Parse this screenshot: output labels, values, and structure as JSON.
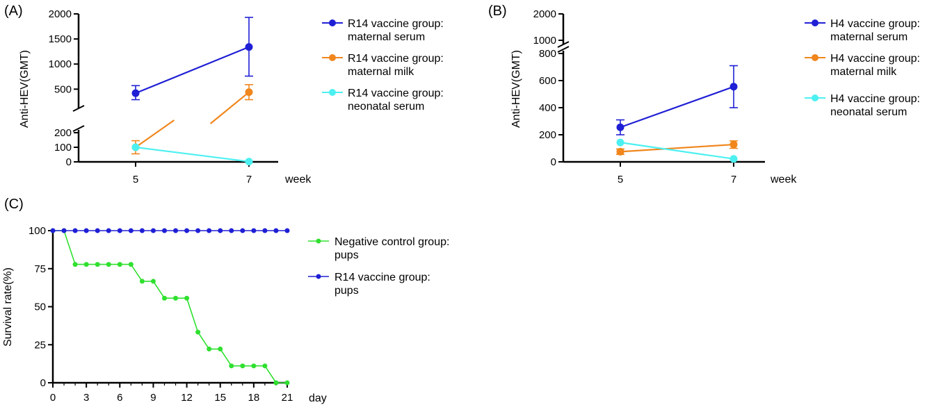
{
  "colors": {
    "blue": "#1f1fd6",
    "orange": "#f0861c",
    "cyan": "#4df0f0",
    "green": "#2fe02f",
    "axis": "#000000"
  },
  "chart_data": [
    {
      "panel_label": "(A)",
      "type": "line",
      "ylabel": "Anti-HEV(GMT)",
      "xlabel": "week",
      "x": [
        5,
        7
      ],
      "x_ticks": [
        "5",
        "7"
      ],
      "y_axis_broken": true,
      "y_lower_segment": {
        "range": [
          0,
          200
        ],
        "ticks": [
          "0",
          "100",
          "200"
        ]
      },
      "y_upper_segment": {
        "range": [
          200,
          2000
        ],
        "ticks": [
          "500",
          "1000",
          "1500",
          "2000"
        ]
      },
      "legend_position": "right",
      "series": [
        {
          "name_line1": "R14 vaccine group:",
          "name_line2": "maternal serum",
          "color": "blue",
          "values": [
            420,
            1340
          ],
          "err_low": [
            290,
            760
          ],
          "err_high": [
            570,
            1930
          ]
        },
        {
          "name_line1": "R14 vaccine group:",
          "name_line2": "maternal milk",
          "color": "orange",
          "values": [
            100,
            440
          ],
          "err_low": [
            55,
            290
          ],
          "err_high": [
            145,
            590
          ]
        },
        {
          "name_line1": "R14 vaccine group:",
          "name_line2": "neonatal serum",
          "color": "cyan",
          "values": [
            100,
            2
          ],
          "err_low": [
            100,
            2
          ],
          "err_high": [
            100,
            2
          ]
        }
      ]
    },
    {
      "panel_label": "(B)",
      "type": "line",
      "ylabel": "Anti-HEV(GMT)",
      "xlabel": "week",
      "x": [
        5,
        7
      ],
      "x_ticks": [
        "5",
        "7"
      ],
      "y_axis_broken": true,
      "y_lower_segment": {
        "range": [
          0,
          800
        ],
        "ticks": [
          "0",
          "200",
          "400",
          "600",
          "800"
        ]
      },
      "y_upper_segment": {
        "range": [
          1000,
          2000
        ],
        "ticks": [
          "1000",
          "2000"
        ]
      },
      "legend_position": "right",
      "series": [
        {
          "name_line1": "H4 vaccine group:",
          "name_line2": "maternal serum",
          "color": "blue",
          "values": [
            255,
            555
          ],
          "err_low": [
            200,
            400
          ],
          "err_high": [
            310,
            710
          ]
        },
        {
          "name_line1": "H4 vaccine group:",
          "name_line2": "maternal milk",
          "color": "orange",
          "values": [
            75,
            128
          ],
          "err_low": [
            55,
            100
          ],
          "err_high": [
            95,
            155
          ]
        },
        {
          "name_line1": "H4 vaccine group:",
          "name_line2": "neonatal serum",
          "color": "cyan",
          "values": [
            143,
            22
          ],
          "err_low": [
            143,
            22
          ],
          "err_high": [
            143,
            22
          ]
        }
      ]
    },
    {
      "panel_label": "(C)",
      "type": "line",
      "ylabel": "Survival rate(%)",
      "xlabel": "day",
      "xlim": [
        0,
        21
      ],
      "ylim": [
        0,
        100
      ],
      "x_ticks": [
        "0",
        "3",
        "6",
        "9",
        "12",
        "15",
        "18",
        "21"
      ],
      "y_ticks": [
        "0",
        "25",
        "50",
        "75",
        "100"
      ],
      "legend_position": "right",
      "x": [
        0,
        1,
        2,
        3,
        4,
        5,
        6,
        7,
        8,
        9,
        10,
        11,
        12,
        13,
        14,
        15,
        16,
        17,
        18,
        19,
        20,
        21
      ],
      "series": [
        {
          "name_line1": "Negative control group:",
          "name_line2": "pups",
          "color": "green",
          "values": [
            100,
            100,
            77.8,
            77.8,
            77.8,
            77.8,
            77.8,
            77.8,
            66.7,
            66.7,
            55.6,
            55.6,
            55.6,
            33.3,
            22.2,
            22.2,
            11.1,
            11.1,
            11.1,
            11.1,
            0,
            0
          ]
        },
        {
          "name_line1": "R14 vaccine group:",
          "name_line2": "pups",
          "color": "blue",
          "values": [
            100,
            100,
            100,
            100,
            100,
            100,
            100,
            100,
            100,
            100,
            100,
            100,
            100,
            100,
            100,
            100,
            100,
            100,
            100,
            100,
            100,
            100
          ]
        }
      ]
    }
  ]
}
